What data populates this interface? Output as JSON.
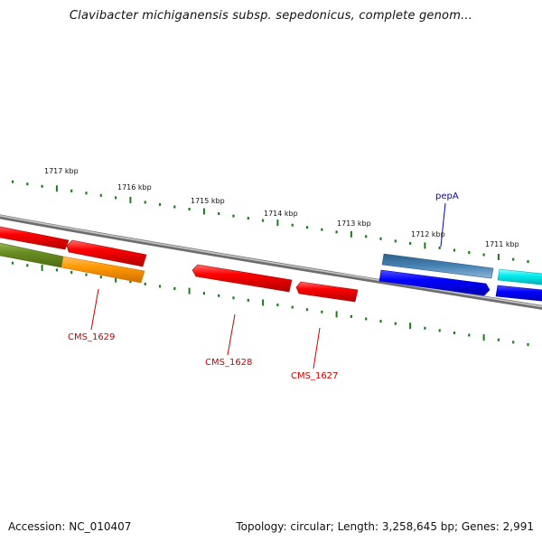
{
  "title": "Clavibacter michiganensis subsp. sepedonicus, complete genom...",
  "footer": {
    "accession": "Accession: NC_010407",
    "summary": "Topology: circular; Length: 3,258,645 bp; Genes: 2,991"
  },
  "ruler": {
    "labels": [
      "1717 kbp",
      "1716 kbp",
      "1715 kbp",
      "1714 kbp",
      "1713 kbp",
      "1712 kbp",
      "1711 kbp"
    ]
  },
  "genes": [
    {
      "id": "cms-1629",
      "label": "CMS_1629",
      "color": "#cc0000"
    },
    {
      "id": "cms-1628",
      "label": "CMS_1628",
      "color": "#cc0000"
    },
    {
      "id": "cms-1627",
      "label": "CMS_1627",
      "color": "#cc0000"
    },
    {
      "id": "pepa",
      "label": "pepA",
      "color": "#0000cc"
    }
  ],
  "colors": {
    "backbone": "#8a8a8a",
    "ticks": "#1e7a1e",
    "red": "#ff0000",
    "olive": "#6b8e23",
    "orange": "#ff9900",
    "steelblue": "#4682b4",
    "blue": "#0000ff",
    "cyan": "#00e5ee"
  }
}
